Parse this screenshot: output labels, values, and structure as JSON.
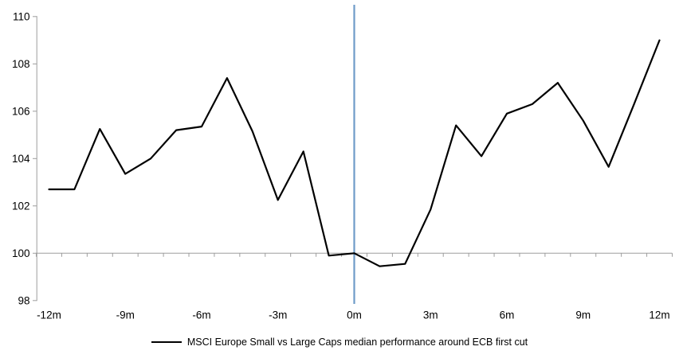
{
  "chart_data": {
    "type": "line",
    "title": "",
    "x": [
      -12,
      -11,
      -10,
      -9,
      -8,
      -7,
      -6,
      -5,
      -4,
      -3,
      -2,
      -1,
      0,
      1,
      2,
      3,
      4,
      5,
      6,
      7,
      8,
      9,
      10,
      11,
      12
    ],
    "series": [
      {
        "name": "MSCI Europe Small vs Large Caps median performance around ECB first cut",
        "color": "#000000",
        "values": [
          102.7,
          102.7,
          105.25,
          103.35,
          104.0,
          105.2,
          105.35,
          107.4,
          105.15,
          102.25,
          104.3,
          99.9,
          100.0,
          99.45,
          99.55,
          101.85,
          105.4,
          104.1,
          105.9,
          106.3,
          107.2,
          105.6,
          103.65,
          106.3,
          109.0
        ]
      }
    ],
    "x_ticks": [
      {
        "x": -12,
        "label": "-12m"
      },
      {
        "x": -9,
        "label": "-9m"
      },
      {
        "x": -6,
        "label": "-6m"
      },
      {
        "x": -3,
        "label": "-3m"
      },
      {
        "x": 0,
        "label": "0m"
      },
      {
        "x": 3,
        "label": "3m"
      },
      {
        "x": 6,
        "label": "6m"
      },
      {
        "x": 9,
        "label": "9m"
      },
      {
        "x": 12,
        "label": "12m"
      }
    ],
    "y_ticks": [
      98,
      100,
      102,
      104,
      106,
      108,
      110
    ],
    "xlim": [
      -12.5,
      12.5
    ],
    "ylim": [
      98,
      110
    ],
    "baseline_y": 100,
    "minor_x_tick_step": 1,
    "event_line": {
      "x": 0
    },
    "colors": {
      "axis": "#9d9d9d",
      "series": "#000000",
      "event_line": "#6e9bc8"
    },
    "legend_position": "bottom-center",
    "grid": "off"
  }
}
